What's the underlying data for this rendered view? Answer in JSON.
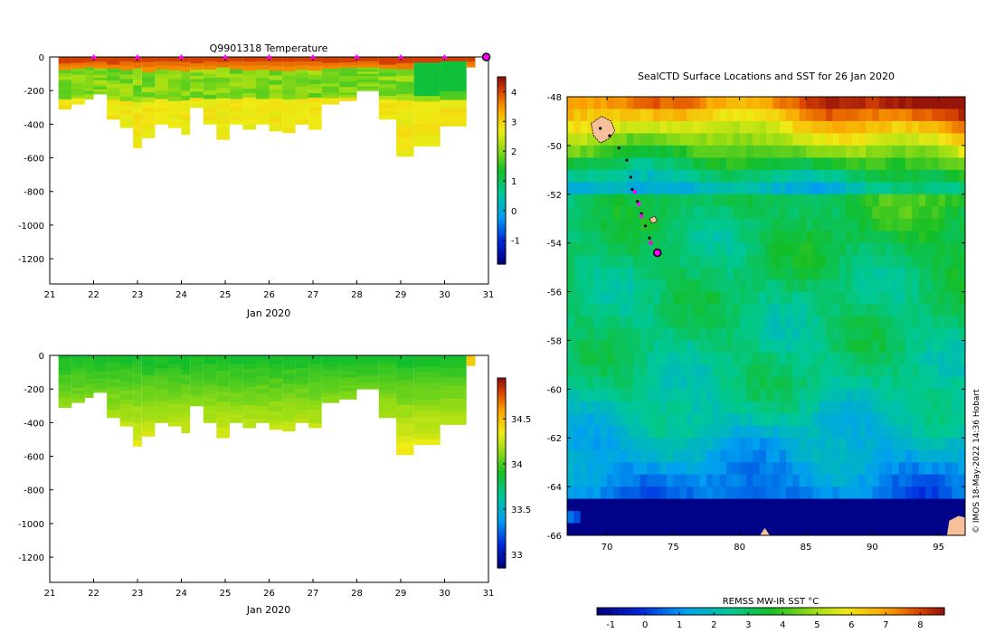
{
  "chart_data": [
    {
      "type": "heatmap",
      "title": "Q9901318  Temperature",
      "xlabel": "Jan 2020",
      "ylabel": "",
      "x_ticks": [
        "21",
        "22",
        "23",
        "24",
        "25",
        "26",
        "27",
        "28",
        "29",
        "30",
        "31"
      ],
      "xlim": [
        21,
        31
      ],
      "y_ticks": [
        "0",
        "-200",
        "-400",
        "-600",
        "-800",
        "-1000",
        "-1200"
      ],
      "ylim": [
        -1350,
        0
      ],
      "colorbar": {
        "ticks": [
          "-1",
          "0",
          "1",
          "2",
          "3",
          "4"
        ],
        "range": [
          -1.8,
          4.5
        ]
      },
      "surface_markers_day": [
        22,
        23,
        24,
        25,
        26,
        27,
        28,
        29,
        30
      ],
      "profiles": [
        {
          "day": 21.2,
          "max_depth": 310
        },
        {
          "day": 21.5,
          "max_depth": 280
        },
        {
          "day": 21.8,
          "max_depth": 250
        },
        {
          "day": 22.0,
          "max_depth": 220
        },
        {
          "day": 22.3,
          "max_depth": 370
        },
        {
          "day": 22.6,
          "max_depth": 420
        },
        {
          "day": 22.9,
          "max_depth": 540
        },
        {
          "day": 23.1,
          "max_depth": 480
        },
        {
          "day": 23.4,
          "max_depth": 400
        },
        {
          "day": 23.7,
          "max_depth": 420
        },
        {
          "day": 24.0,
          "max_depth": 460
        },
        {
          "day": 24.2,
          "max_depth": 300
        },
        {
          "day": 24.5,
          "max_depth": 400
        },
        {
          "day": 24.8,
          "max_depth": 490
        },
        {
          "day": 25.1,
          "max_depth": 400
        },
        {
          "day": 25.4,
          "max_depth": 430
        },
        {
          "day": 25.7,
          "max_depth": 400
        },
        {
          "day": 26.0,
          "max_depth": 440
        },
        {
          "day": 26.3,
          "max_depth": 450
        },
        {
          "day": 26.6,
          "max_depth": 400
        },
        {
          "day": 26.9,
          "max_depth": 430
        },
        {
          "day": 27.2,
          "max_depth": 280
        },
        {
          "day": 27.6,
          "max_depth": 260
        },
        {
          "day": 28.0,
          "max_depth": 200
        },
        {
          "day": 28.5,
          "max_depth": 370
        },
        {
          "day": 28.9,
          "max_depth": 590
        },
        {
          "day": 29.3,
          "max_depth": 530
        },
        {
          "day": 29.9,
          "max_depth": 410
        },
        {
          "day": 30.5,
          "max_depth": 60
        }
      ]
    },
    {
      "type": "heatmap",
      "title": "",
      "xlabel": "Jan 2020",
      "ylabel": "",
      "x_ticks": [
        "21",
        "22",
        "23",
        "24",
        "25",
        "26",
        "27",
        "28",
        "29",
        "30",
        "31"
      ],
      "xlim": [
        21,
        31
      ],
      "y_ticks": [
        "0",
        "-200",
        "-400",
        "-600",
        "-800",
        "-1000",
        "-1200"
      ],
      "ylim": [
        -1350,
        0
      ],
      "colorbar": {
        "ticks": [
          "33",
          "33.5",
          "34",
          "34.5"
        ],
        "range": [
          32.85,
          34.95
        ]
      }
    },
    {
      "type": "heatmap",
      "title": "SealCTD Surface Locations and SST for 26 Jan 2020",
      "xlabel": "",
      "ylabel": "",
      "x_ticks": [
        "70",
        "75",
        "80",
        "85",
        "90",
        "95"
      ],
      "xlim": [
        67,
        97
      ],
      "y_ticks": [
        "-48",
        "-50",
        "-52",
        "-54",
        "-56",
        "-58",
        "-60",
        "-62",
        "-64",
        "-66"
      ],
      "ylim": [
        -66,
        -48
      ],
      "colorbar": {
        "label": "REMSS MW-IR SST °C",
        "ticks": [
          "-1",
          "0",
          "1",
          "2",
          "3",
          "4",
          "5",
          "6",
          "7",
          "8"
        ],
        "range": [
          -1.4,
          8.7
        ]
      },
      "track": [
        {
          "lon": 69.5,
          "lat": -49.3
        },
        {
          "lon": 70.2,
          "lat": -49.6
        },
        {
          "lon": 70.9,
          "lat": -50.1
        },
        {
          "lon": 71.5,
          "lat": -50.6
        },
        {
          "lon": 71.8,
          "lat": -51.3
        },
        {
          "lon": 71.9,
          "lat": -51.8
        },
        {
          "lon": 72.3,
          "lat": -52.3
        },
        {
          "lon": 72.6,
          "lat": -52.8
        },
        {
          "lon": 72.9,
          "lat": -53.3
        },
        {
          "lon": 73.2,
          "lat": -53.8
        },
        {
          "lon": 73.8,
          "lat": -54.4
        }
      ],
      "track_highlight": [
        {
          "lon": 72.1,
          "lat": -51.9
        },
        {
          "lon": 72.4,
          "lat": -52.4
        },
        {
          "lon": 72.6,
          "lat": -52.9
        },
        {
          "lon": 73.3,
          "lat": -54.0
        }
      ],
      "current_position": {
        "lon": 73.8,
        "lat": -54.4
      }
    }
  ],
  "credit": "© IMOS 18-May-2022 14:36 Hobart"
}
